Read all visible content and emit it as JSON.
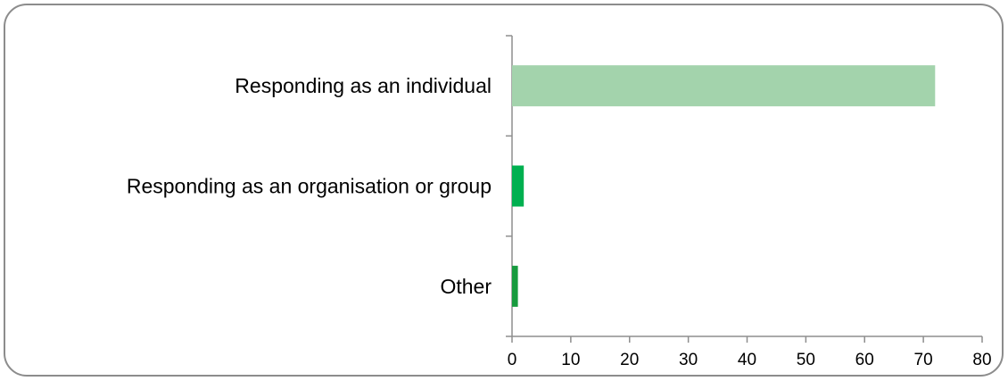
{
  "chart_data": {
    "type": "bar",
    "orientation": "horizontal",
    "title": "",
    "xlabel": "",
    "ylabel": "",
    "categories": [
      "Responding as an individual",
      "Responding as an organisation or group",
      "Other"
    ],
    "values": [
      72,
      2,
      1
    ],
    "bar_colors": [
      "#a3d3ac",
      "#00b050",
      "#179b3e"
    ],
    "xlim": [
      0,
      80
    ],
    "x_ticks": [
      0,
      10,
      20,
      30,
      40,
      50,
      60,
      70,
      80
    ],
    "x_tick_labels": [
      "0",
      "10",
      "20",
      "30",
      "40",
      "50",
      "60",
      "70",
      "80"
    ],
    "grid": false,
    "legend": "none"
  }
}
